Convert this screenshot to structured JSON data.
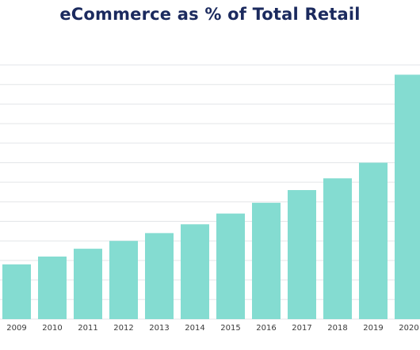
{
  "chart_data": {
    "type": "bar",
    "title": "eCommerce as % of Total Retail",
    "categories": [
      "2009",
      "2010",
      "2011",
      "2012",
      "2013",
      "2014",
      "2015",
      "2016",
      "2017",
      "2018",
      "2019",
      "2020"
    ],
    "values": [
      2.8,
      3.2,
      3.6,
      4.0,
      4.4,
      4.85,
      5.4,
      5.95,
      6.6,
      7.2,
      8.0,
      12.5
    ],
    "ylim": [
      0,
      13
    ],
    "grid": true,
    "xlabel": "",
    "ylabel": "",
    "colors": {
      "bar": "#84dcd1",
      "grid": "#e3e5e8",
      "title": "#1b2a5e",
      "tick": "#3a3a3a"
    }
  }
}
